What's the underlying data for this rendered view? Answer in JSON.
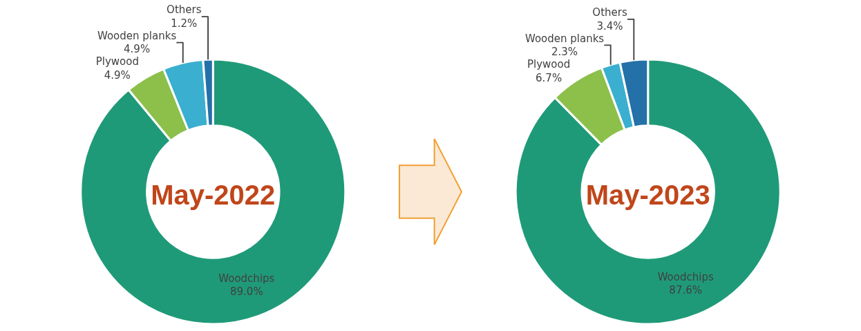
{
  "chart_data": [
    {
      "type": "donut",
      "title": "May-2022",
      "categories": [
        "Woodchips",
        "Plywood",
        "Wooden planks",
        "Others"
      ],
      "values": [
        89.0,
        4.9,
        4.9,
        1.2
      ],
      "value_labels": [
        "89.0%",
        "4.9%",
        "4.9%",
        "1.2%"
      ],
      "colors": [
        "#1f9a78",
        "#8cc04a",
        "#3aafd0",
        "#2470a8"
      ],
      "legend": false
    },
    {
      "type": "donut",
      "title": "May-2023",
      "categories": [
        "Woodchips",
        "Plywood",
        "Wooden planks",
        "Others"
      ],
      "values": [
        87.6,
        6.7,
        2.3,
        3.4
      ],
      "value_labels": [
        "87.6%",
        "6.7%",
        "2.3%",
        "3.4%"
      ],
      "colors": [
        "#1f9a78",
        "#8cc04a",
        "#3aafd0",
        "#2470a8"
      ],
      "legend": false
    }
  ]
}
